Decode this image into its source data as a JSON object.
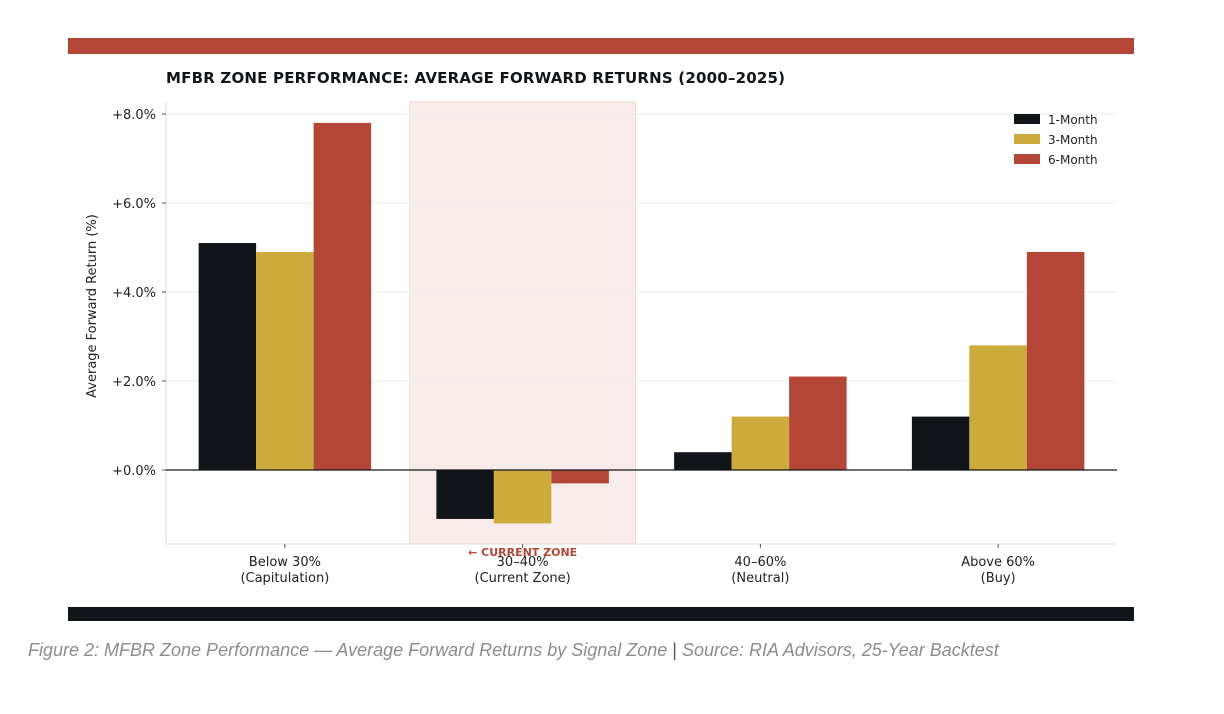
{
  "chart_data": {
    "type": "bar",
    "title": "MFBR ZONE PERFORMANCE: AVERAGE FORWARD RETURNS (2000–2025)",
    "ylabel": "Average Forward Return (%)",
    "xlabel": "",
    "categories": [
      [
        "Below 30%",
        "(Capitulation)"
      ],
      [
        "30–40%",
        "(Current Zone)"
      ],
      [
        "40–60%",
        "(Neutral)"
      ],
      [
        "Above 60%",
        "(Buy)"
      ]
    ],
    "series": [
      {
        "name": "1-Month",
        "color": "#111418",
        "values": [
          5.1,
          -1.1,
          0.4,
          1.2
        ]
      },
      {
        "name": "3-Month",
        "color": "#ccab3c",
        "values": [
          4.9,
          -1.2,
          1.2,
          2.8
        ]
      },
      {
        "name": "6-Month",
        "color": "#b34636",
        "values": [
          7.8,
          -0.3,
          2.1,
          4.9
        ]
      }
    ],
    "ylim": [
      -1.65,
      8.2
    ],
    "yticks": [
      0,
      2,
      4,
      6,
      8
    ],
    "ytick_labels": [
      "+0.0%",
      "+2.0%",
      "+4.0%",
      "+6.0%",
      "+8.0%"
    ],
    "grid": true,
    "legend_position": "top-right",
    "highlight": {
      "category_index": 1,
      "label": "← CURRENT ZONE",
      "color": "#b34636"
    }
  },
  "caption": {
    "figure": "Figure 2: MFBR Zone Performance — Average Forward Returns by Signal Zone",
    "separator": "|",
    "source": "Source: RIA Advisors, 25-Year Backtest"
  }
}
